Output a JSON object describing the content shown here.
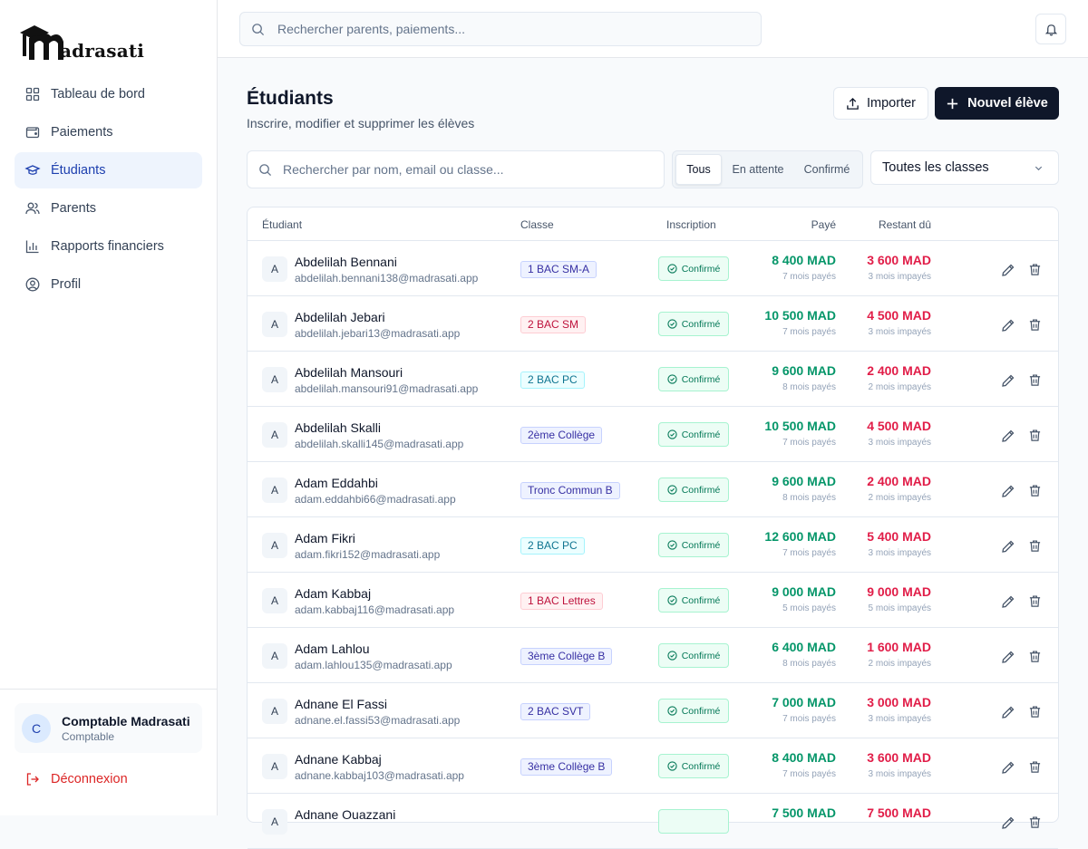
{
  "brand": {
    "name": "adrasati"
  },
  "search": {
    "placeholder": "Rechercher parents, paiements..."
  },
  "nav": [
    {
      "label": "Tableau de bord",
      "icon": "dashboard-icon"
    },
    {
      "label": "Paiements",
      "icon": "wallet-icon"
    },
    {
      "label": "Étudiants",
      "icon": "graduation-cap-icon",
      "active": true
    },
    {
      "label": "Parents",
      "icon": "users-icon"
    },
    {
      "label": "Rapports financiers",
      "icon": "bar-chart-icon"
    },
    {
      "label": "Profil",
      "icon": "user-circle-icon"
    }
  ],
  "user": {
    "initial": "C",
    "name": "Comptable Madrasati",
    "role": "Comptable"
  },
  "logout_label": "Déconnexion",
  "page": {
    "title": "Étudiants",
    "subtitle": "Inscrire, modifier et supprimer les élèves"
  },
  "actions": {
    "import_label": "Importer",
    "new_label": "Nouvel élève"
  },
  "filters": {
    "search_placeholder": "Rechercher par nom, email ou classe...",
    "tabs": [
      "Tous",
      "En attente",
      "Confirmé"
    ],
    "active_tab": "Tous",
    "class_select": "Toutes les classes"
  },
  "table": {
    "headers": {
      "student": "Étudiant",
      "class": "Classe",
      "enrollment": "Inscription",
      "paid": "Payé",
      "due": "Restant dû"
    },
    "rows": [
      {
        "initial": "A",
        "name": "Abdelilah Bennani",
        "email": "abdelilah.bennani138@madrasati.app",
        "class": "1 BAC SM-A",
        "class_color": "blue",
        "status": "Confirmé",
        "paid": "8 400 MAD",
        "paid_sub": "7 mois payés",
        "due": "3 600 MAD",
        "due_sub": "3 mois impayés"
      },
      {
        "initial": "A",
        "name": "Abdelilah Jebari",
        "email": "abdelilah.jebari13@madrasati.app",
        "class": "2 BAC SM",
        "class_color": "red",
        "status": "Confirmé",
        "paid": "10 500 MAD",
        "paid_sub": "7 mois payés",
        "due": "4 500 MAD",
        "due_sub": "3 mois impayés"
      },
      {
        "initial": "A",
        "name": "Abdelilah Mansouri",
        "email": "abdelilah.mansouri91@madrasati.app",
        "class": "2 BAC PC",
        "class_color": "teal",
        "status": "Confirmé",
        "paid": "9 600 MAD",
        "paid_sub": "8 mois payés",
        "due": "2 400 MAD",
        "due_sub": "2 mois impayés"
      },
      {
        "initial": "A",
        "name": "Abdelilah Skalli",
        "email": "abdelilah.skalli145@madrasati.app",
        "class": "2ème Collège",
        "class_color": "blue",
        "status": "Confirmé",
        "paid": "10 500 MAD",
        "paid_sub": "7 mois payés",
        "due": "4 500 MAD",
        "due_sub": "3 mois impayés"
      },
      {
        "initial": "A",
        "name": "Adam Eddahbi",
        "email": "adam.eddahbi66@madrasati.app",
        "class": "Tronc Commun B",
        "class_color": "blue",
        "status": "Confirmé",
        "paid": "9 600 MAD",
        "paid_sub": "8 mois payés",
        "due": "2 400 MAD",
        "due_sub": "2 mois impayés"
      },
      {
        "initial": "A",
        "name": "Adam Fikri",
        "email": "adam.fikri152@madrasati.app",
        "class": "2 BAC PC",
        "class_color": "teal",
        "status": "Confirmé",
        "paid": "12 600 MAD",
        "paid_sub": "7 mois payés",
        "due": "5 400 MAD",
        "due_sub": "3 mois impayés"
      },
      {
        "initial": "A",
        "name": "Adam Kabbaj",
        "email": "adam.kabbaj116@madrasati.app",
        "class": "1 BAC Lettres",
        "class_color": "red",
        "status": "Confirmé",
        "paid": "9 000 MAD",
        "paid_sub": "5 mois payés",
        "due": "9 000 MAD",
        "due_sub": "5 mois impayés"
      },
      {
        "initial": "A",
        "name": "Adam Lahlou",
        "email": "adam.lahlou135@madrasati.app",
        "class": "3ème Collège B",
        "class_color": "blue",
        "status": "Confirmé",
        "paid": "6 400 MAD",
        "paid_sub": "8 mois payés",
        "due": "1 600 MAD",
        "due_sub": "2 mois impayés"
      },
      {
        "initial": "A",
        "name": "Adnane El Fassi",
        "email": "adnane.el.fassi53@madrasati.app",
        "class": "2 BAC SVT",
        "class_color": "blue",
        "status": "Confirmé",
        "paid": "7 000 MAD",
        "paid_sub": "7 mois payés",
        "due": "3 000 MAD",
        "due_sub": "3 mois impayés"
      },
      {
        "initial": "A",
        "name": "Adnane Kabbaj",
        "email": "adnane.kabbaj103@madrasati.app",
        "class": "3ème Collège B",
        "class_color": "blue",
        "status": "Confirmé",
        "paid": "8 400 MAD",
        "paid_sub": "7 mois payés",
        "due": "3 600 MAD",
        "due_sub": "3 mois impayés"
      },
      {
        "initial": "A",
        "name": "Adnane Ouazzani",
        "email": "",
        "class": "",
        "class_color": "teal",
        "status": "",
        "paid": "7 500 MAD",
        "paid_sub": "",
        "due": "7 500 MAD",
        "due_sub": ""
      }
    ]
  },
  "colors": {
    "primary": "#0f172a",
    "active_nav_bg": "#eef4fd",
    "active_nav_text": "#1e40af",
    "paid": "#059669",
    "due": "#e11d48",
    "confirmed": "#047857",
    "logout": "#dc2626"
  }
}
